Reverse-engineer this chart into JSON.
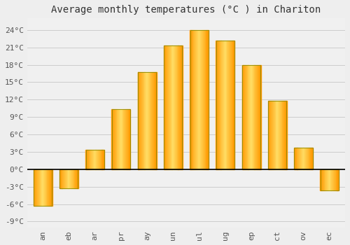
{
  "month_labels": [
    "an",
    "eb",
    "ar",
    "pr",
    "ay",
    "un",
    "ul",
    "ug",
    "ep",
    "ct",
    "ov",
    "ec"
  ],
  "values": [
    -6.3,
    -3.3,
    3.3,
    10.3,
    16.7,
    21.3,
    24.0,
    22.2,
    18.0,
    11.8,
    3.7,
    -3.7
  ],
  "bar_color_outer": "#FFA500",
  "bar_color_inner": "#FFD966",
  "bar_edge_color": "#999900",
  "title": "Average monthly temperatures (°C ) in Chariton",
  "ylim": [
    -10,
    26
  ],
  "yticks": [
    -9,
    -6,
    -3,
    0,
    3,
    6,
    9,
    12,
    15,
    18,
    21,
    24
  ],
  "ytick_labels": [
    "-9°C",
    "-6°C",
    "-3°C",
    "0°C",
    "3°C",
    "6°C",
    "9°C",
    "12°C",
    "15°C",
    "18°C",
    "21°C",
    "24°C"
  ],
  "background_color": "#eeeeee",
  "plot_bg_color": "#f0f0f0",
  "grid_color": "#cccccc",
  "title_fontsize": 10,
  "tick_fontsize": 8,
  "zero_line_color": "#000000",
  "bar_width": 0.7
}
